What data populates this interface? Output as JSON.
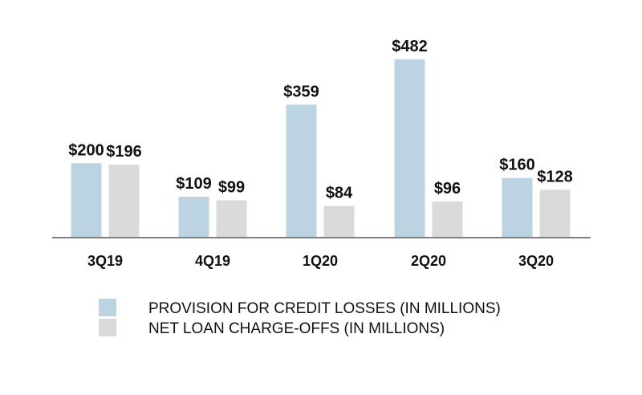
{
  "chart_data": {
    "type": "bar",
    "title": "",
    "xlabel": "",
    "ylabel": "",
    "categories": [
      "3Q19",
      "4Q19",
      "1Q20",
      "2Q20",
      "3Q20"
    ],
    "series": [
      {
        "name": "PROVISION FOR CREDIT LOSSES (IN MILLIONS)",
        "color": "#BCD4E1",
        "values": [
          200,
          109,
          359,
          482,
          160
        ],
        "labels": [
          "$200",
          "$109",
          "$359",
          "$482",
          "$160"
        ]
      },
      {
        "name": "NET LOAN CHARGE-OFFS (IN MILLIONS)",
        "color": "#DADADA",
        "values": [
          196,
          99,
          84,
          96,
          128
        ],
        "labels": [
          "$196",
          "$99",
          "$84",
          "$96",
          "$128"
        ]
      }
    ],
    "ylim": [
      0,
      482
    ],
    "grid": false,
    "legend": "bottom"
  }
}
